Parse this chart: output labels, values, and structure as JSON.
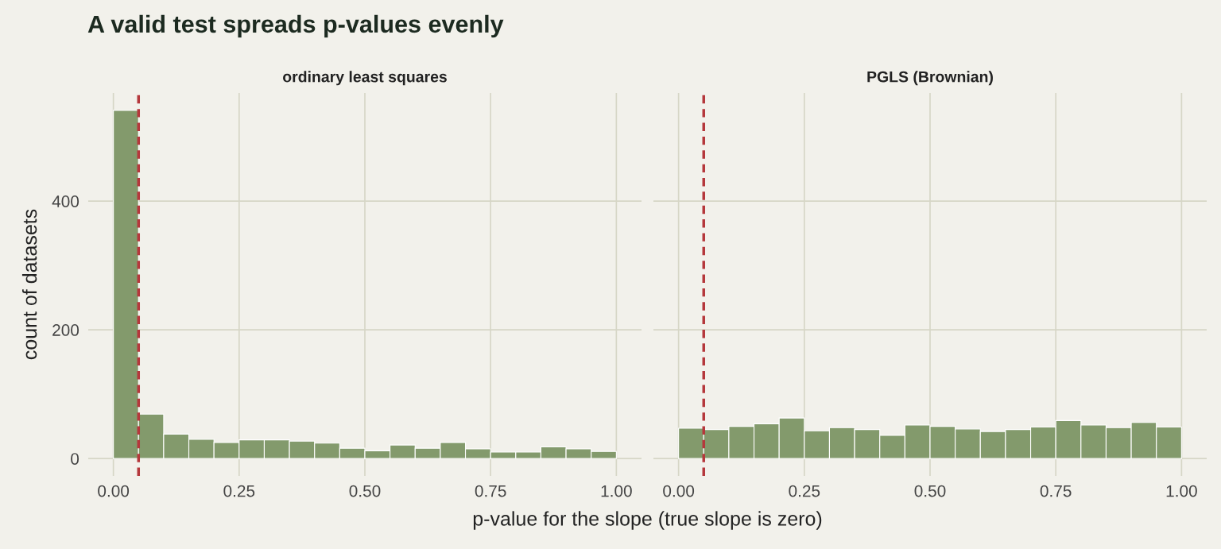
{
  "chart_data": [
    {
      "type": "histogram",
      "title": "A valid test spreads p-values evenly",
      "subtitle": "ordinary least squares",
      "xlabel": "p-value for the slope (true slope is zero)",
      "ylabel": "count of datasets",
      "bins": [
        0,
        0.05,
        0.1,
        0.15,
        0.2,
        0.25,
        0.3,
        0.35,
        0.4,
        0.45,
        0.5,
        0.55,
        0.6,
        0.65,
        0.7,
        0.75,
        0.8,
        0.85,
        0.9,
        0.95,
        1
      ],
      "values": [
        541,
        69,
        38,
        30,
        25,
        29,
        29,
        27,
        24,
        16,
        12,
        21,
        16,
        25,
        15,
        10,
        10,
        18,
        15,
        11
      ],
      "color": "#839a6c",
      "xlim": [
        -0.05,
        1.05
      ],
      "xticks": [
        {
          "value": 0,
          "label": "0.00"
        },
        {
          "value": 0.25,
          "label": "0.25"
        },
        {
          "value": 0.5,
          "label": "0.50"
        },
        {
          "value": 0.75,
          "label": "0.75"
        },
        {
          "value": 1,
          "label": "1.00"
        }
      ],
      "ylim": [
        -27,
        568
      ],
      "yticks": [
        0,
        200,
        400
      ],
      "grid": true,
      "ref_lines": [
        {
          "axis": "x",
          "value": 0.05,
          "color": "#b5383c",
          "line_style": "dashed"
        }
      ]
    },
    {
      "type": "histogram",
      "subtitle": "PGLS (Brownian)",
      "bins": [
        0,
        0.05,
        0.1,
        0.15,
        0.2,
        0.25,
        0.3,
        0.35,
        0.4,
        0.45,
        0.5,
        0.55,
        0.6,
        0.65,
        0.7,
        0.75,
        0.8,
        0.85,
        0.9,
        0.95,
        1
      ],
      "values": [
        47,
        45,
        50,
        54,
        63,
        43,
        48,
        45,
        36,
        52,
        50,
        46,
        42,
        45,
        49,
        59,
        52,
        48,
        56,
        49
      ],
      "color": "#839a6c",
      "xlim": [
        -0.05,
        1.05
      ],
      "xticks": [
        {
          "value": 0,
          "label": "0.00"
        },
        {
          "value": 0.25,
          "label": "0.25"
        },
        {
          "value": 0.5,
          "label": "0.50"
        },
        {
          "value": 0.75,
          "label": "0.75"
        },
        {
          "value": 1,
          "label": "1.00"
        }
      ],
      "ylim": [
        -27,
        568
      ],
      "yticks": [
        0,
        200,
        400
      ],
      "grid": true,
      "tick_labels": "x",
      "ref_lines": [
        {
          "axis": "x",
          "value": 0.05,
          "color": "#b5383c",
          "line_style": "dashed"
        }
      ]
    }
  ]
}
